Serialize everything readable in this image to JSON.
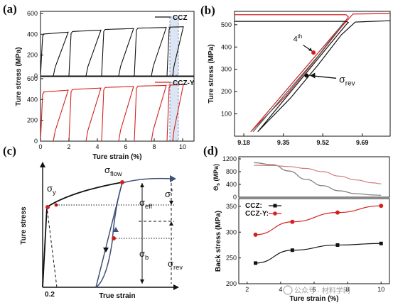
{
  "panel_labels": {
    "a": "(a)",
    "b": "(b)",
    "c": "(c)",
    "d": "(d)"
  },
  "watermark": "公众号 · 材料学网",
  "chart_data": [
    {
      "id": "a",
      "type": "line",
      "xlabel": "Ture strain (%)",
      "ylabel": "Ture stress (MPa)",
      "xlim": [
        0,
        10.8
      ],
      "xticks": [
        0,
        2,
        4,
        6,
        8,
        10
      ],
      "top": {
        "legend": "CCZ",
        "color": "#111111",
        "ylim": [
          0,
          620
        ],
        "yticks": [
          0,
          200,
          400,
          600
        ],
        "cycles": [
          {
            "start": 0.0,
            "end": 2.0,
            "y0": 400,
            "y1": 420,
            "unload_to": 0.9
          },
          {
            "start": 2.0,
            "end": 4.3,
            "y0": 425,
            "y1": 440,
            "unload_to": 3.2
          },
          {
            "start": 4.3,
            "end": 6.6,
            "y0": 445,
            "y1": 455,
            "unload_to": 5.5
          },
          {
            "start": 6.6,
            "end": 8.9,
            "y0": 458,
            "y1": 465,
            "unload_to": 7.8
          },
          {
            "start": 8.9,
            "end": 10.1,
            "y0": 468,
            "y1": 472,
            "unload_to": 9.3
          }
        ]
      },
      "bottom": {
        "legend": "CCZ-Y",
        "color": "#d42020",
        "ylim": [
          0,
          620
        ],
        "yticks": [
          0,
          200,
          400,
          600
        ],
        "cycles": [
          {
            "start": 0.0,
            "end": 2.0,
            "y0": 470,
            "y1": 490,
            "unload_to": 0.9
          },
          {
            "start": 2.0,
            "end": 4.3,
            "y0": 495,
            "y1": 510,
            "unload_to": 3.2
          },
          {
            "start": 4.3,
            "end": 6.6,
            "y0": 515,
            "y1": 525,
            "unload_to": 5.5
          },
          {
            "start": 6.6,
            "end": 8.9,
            "y0": 528,
            "y1": 535,
            "unload_to": 7.8
          },
          {
            "start": 8.9,
            "end": 10.1,
            "y0": 538,
            "y1": 542,
            "unload_to": 9.3
          }
        ]
      },
      "highlight_x": [
        9.1,
        9.7
      ]
    },
    {
      "id": "b",
      "type": "line",
      "ylabel": "Ture stress (MPa)",
      "xlim": [
        9.14,
        9.81
      ],
      "ylim": [
        0,
        560
      ],
      "xticks": [
        9.18,
        9.35,
        9.52,
        9.69
      ],
      "yticks": [
        100,
        200,
        300,
        400,
        500
      ],
      "annotations": [
        {
          "text": "4",
          "sup": "th",
          "x": 9.46,
          "y": 418
        },
        {
          "text": "σ",
          "sub": "rev",
          "x": 9.59,
          "y": 260
        }
      ],
      "series": [
        {
          "color": "#d42020",
          "points": [
            [
              9.14,
              545
            ],
            [
              9.62,
              545
            ],
            [
              9.63,
              535
            ],
            [
              9.62,
              520
            ],
            [
              9.21,
              20
            ],
            [
              9.36,
              180
            ],
            [
              9.49,
              345
            ],
            [
              9.6,
              490
            ],
            [
              9.65,
              548
            ],
            [
              9.81,
              550
            ]
          ],
          "marker": {
            "x": 9.48,
            "y": 375
          }
        },
        {
          "color": "#111111",
          "points": [
            [
              9.14,
              515
            ],
            [
              9.62,
              515
            ],
            [
              9.63,
              510
            ],
            [
              9.62,
              500
            ],
            [
              9.24,
              20
            ],
            [
              9.38,
              170
            ],
            [
              9.5,
              320
            ],
            [
              9.6,
              455
            ],
            [
              9.66,
              512
            ],
            [
              9.81,
              518
            ]
          ],
          "marker": {
            "x": 9.45,
            "y": 272
          }
        },
        {
          "color": "#2a6e72",
          "points": [
            [
              9.22,
              20
            ],
            [
              9.36,
              190
            ],
            [
              9.5,
              360
            ],
            [
              9.61,
              510
            ]
          ]
        }
      ]
    },
    {
      "id": "c",
      "type": "line",
      "ylabel": "Ture stress",
      "xlabel": "True strain",
      "tick_label": "0.2",
      "labels": {
        "flow": [
          "σ",
          "flow"
        ],
        "y": [
          "σ",
          "y"
        ],
        "eff": [
          "σ",
          "eff"
        ],
        "star": [
          "σ",
          "*"
        ],
        "b": [
          "σ",
          "b"
        ],
        "rev": [
          "σ",
          "rev"
        ]
      }
    },
    {
      "id": "d",
      "type": "line",
      "xlabel": "Ture strain (%)",
      "xlim": [
        1.5,
        10.5
      ],
      "xticks": [
        2,
        4,
        6,
        8,
        10
      ],
      "top": {
        "ylabel": "Θ",
        "ylabel_sub": "s",
        "ylabel_unit": " (MPa)",
        "ylim": [
          0,
          1200
        ],
        "yticks": [
          0,
          400,
          800,
          1200
        ],
        "series": [
          {
            "color": "#7a7a7a",
            "x": [
              2.4,
              3.5,
              4.5,
              5.5,
              6.5,
              7.5,
              8.5,
              9.5,
              10.0
            ],
            "y": [
              1080,
              1020,
              820,
              560,
              360,
              200,
              110,
              70,
              60
            ]
          },
          {
            "color": "#d47a7a",
            "x": [
              2.4,
              3.5,
              4.5,
              5.5,
              6.5,
              7.5,
              8.5,
              9.5,
              10.0
            ],
            "y": [
              1000,
              990,
              960,
              900,
              800,
              660,
              540,
              450,
              420
            ]
          }
        ]
      },
      "bottom": {
        "ylabel": "Back stress (MPa)",
        "ylim": [
          200,
          365
        ],
        "yticks": [
          200,
          250,
          300,
          350
        ],
        "series": [
          {
            "name": "CCZ:",
            "color": "#111111",
            "marker": "square",
            "x": [
              2.5,
              4.7,
              7.4,
              10.0
            ],
            "y": [
              240,
              265,
              275,
              278
            ]
          },
          {
            "name": "CCZ-Y:",
            "color": "#d42020",
            "marker": "circle",
            "x": [
              2.5,
              4.7,
              7.4,
              10.0
            ],
            "y": [
              295,
              320,
              338,
              351
            ]
          }
        ]
      }
    }
  ]
}
